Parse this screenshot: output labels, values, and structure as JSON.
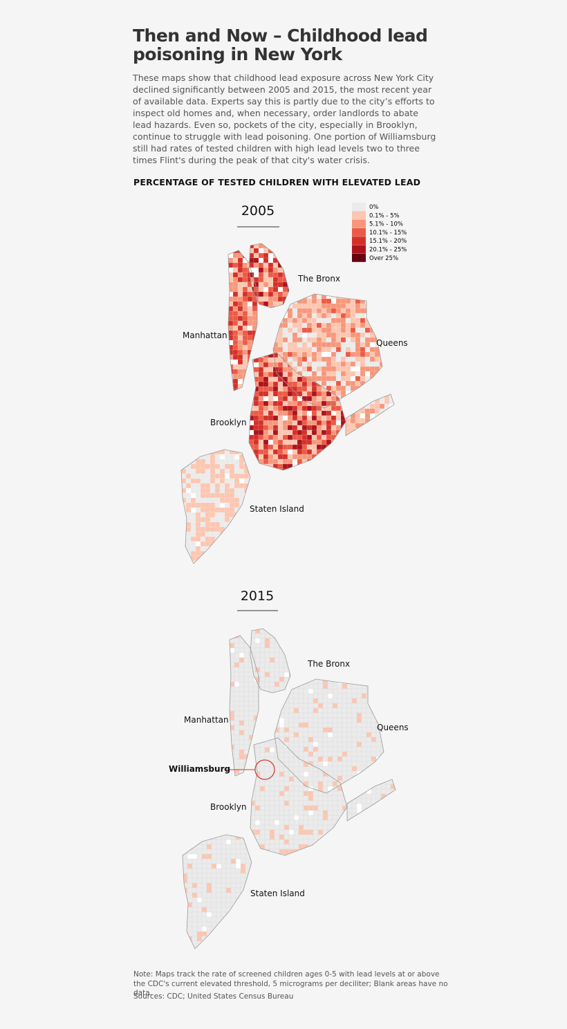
{
  "header": {
    "title": "Then and Now – Childhood lead poisoning in New York",
    "intro": "These maps show that childhood lead exposure across New York City declined significantly between 2005 and 2015, the most recent year of available data. Experts say this is partly due to the city’s efforts to inspect old homes and, when necessary, order landlords to abate lead hazards. Even so, pockets of the city, especially in Brooklyn, continue to struggle with lead poisoning.  One portion of Williamsburg still had rates of tested children with high lead levels two to three times Flint's during the peak of that city's water crisis.",
    "subtitle": "PERCENTAGE OF TESTED CHILDREN WITH ELEVATED LEAD"
  },
  "legend": {
    "items": [
      {
        "label": "0%",
        "color": "#ebebeb"
      },
      {
        "label": "0.1% - 5%",
        "color": "#fcc6b1"
      },
      {
        "label": "5.1% - 10%",
        "color": "#f6977b"
      },
      {
        "label": "10.1% - 15%",
        "color": "#ec5a45"
      },
      {
        "label": "15.1% - 20%",
        "color": "#d4302a"
      },
      {
        "label": "20.1% - 25%",
        "color": "#ab141d"
      },
      {
        "label": "Over 25%",
        "color": "#690010"
      }
    ]
  },
  "maps": [
    {
      "year": "2005",
      "labels": [
        "The Bronx",
        "Manhattan",
        "Queens",
        "Brooklyn",
        "Staten Island"
      ]
    },
    {
      "year": "2015",
      "labels": [
        "The Bronx",
        "Manhattan",
        "Queens",
        "Brooklyn",
        "Staten Island"
      ],
      "callout": "Williamsburg"
    }
  ],
  "footer": {
    "note": "Note: Maps track the rate of screened children ages 0-5 with lead levels at or above the CDC's current elevated threshold, 5 micrograms per deciliter; Blank areas have no data.",
    "sources": "Sources: CDC; United States Census Bureau"
  }
}
